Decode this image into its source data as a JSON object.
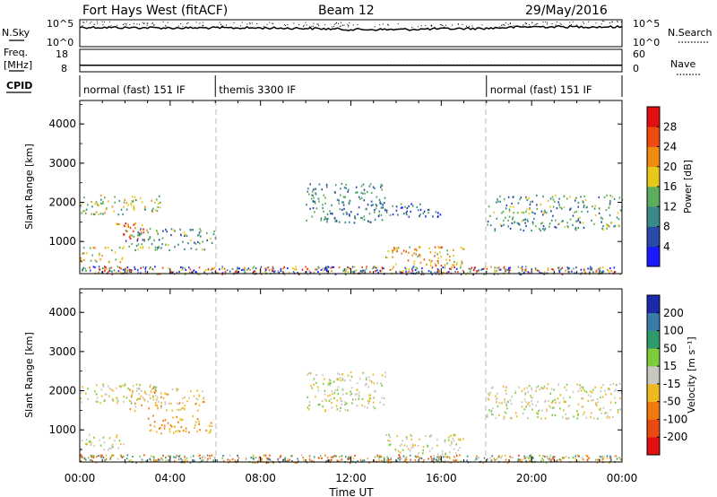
{
  "header": {
    "station": "Fort Hays West (fitACF)",
    "beam": "Beam 12",
    "date": "29/May/2016"
  },
  "noise_panel": {
    "left_label": "N.Sky",
    "right_label": "N.Search",
    "left_ticks": [
      "10^5",
      "10^0"
    ],
    "right_ticks": [
      "10^5",
      "10^0"
    ]
  },
  "freq_panel": {
    "left_label_1": "Freq.",
    "left_label_2": "[MHz]",
    "right_label": "Nave",
    "left_ticks": [
      "18",
      "8"
    ],
    "right_ticks": [
      "60",
      "0"
    ]
  },
  "cpid": {
    "label": "CPID",
    "segments": [
      {
        "start": 0,
        "end": 6,
        "name": "normal (fast) 151 IF"
      },
      {
        "start": 6,
        "end": 18,
        "name": "themis 3300 IF"
      },
      {
        "start": 18,
        "end": 24,
        "name": "normal (fast) 151 IF"
      }
    ]
  },
  "power_panel": {
    "ylabel": "Slant Range [km]",
    "yticks": [
      "4000",
      "3000",
      "2000",
      "1000"
    ],
    "colorbar_label": "Power [dB]",
    "colorbar_ticks": [
      "28",
      "24",
      "20",
      "16",
      "12",
      "8",
      "4"
    ],
    "colors": [
      "#1a1aff",
      "#2a4aa8",
      "#3a8a8a",
      "#5cae5c",
      "#e8c81a",
      "#f08a10",
      "#ef4a10",
      "#e01010"
    ]
  },
  "velocity_panel": {
    "ylabel": "Slant Range [km]",
    "yticks": [
      "4000",
      "3000",
      "2000",
      "1000"
    ],
    "colorbar_label": "Velocity [m s⁻¹]",
    "colorbar_ticks": [
      "200",
      "100",
      "50",
      "15",
      "-15",
      "-50",
      "-100",
      "-200"
    ],
    "colors": [
      "#1a2aa8",
      "#3a7aa8",
      "#2e9c6a",
      "#7ccc3c",
      "#c8c8c0",
      "#f0b820",
      "#f07a10",
      "#e84a10",
      "#e01010"
    ]
  },
  "xaxis": {
    "ticks": [
      "00:00",
      "04:00",
      "08:00",
      "12:00",
      "16:00",
      "20:00",
      "00:00"
    ],
    "label": "Time UT"
  },
  "chart_data": [
    {
      "type": "line",
      "title": "Fort Hays West (fitACF)",
      "subtitle": "Beam 12",
      "ylabel": "N.Sky",
      "x_range": [
        "00:00",
        "00:00"
      ],
      "ylim": [
        1,
        100000
      ],
      "y_scale": "log",
      "series": [
        {
          "name": "N.Sky",
          "x_hours": [
            0,
            2,
            4,
            6,
            8,
            10,
            12,
            14,
            16,
            18,
            20,
            22,
            24
          ],
          "values": [
            4000,
            3500,
            3000,
            3000,
            3000,
            2500,
            1500,
            1500,
            2000,
            2500,
            5000,
            5000,
            4500
          ]
        }
      ]
    },
    {
      "type": "line",
      "ylabel": "Freq. [MHz]",
      "y2label": "Nave",
      "ylim": [
        8,
        18
      ],
      "y2lim": [
        0,
        60
      ],
      "series": [
        {
          "name": "Freq.",
          "x_hours": [
            0,
            24
          ],
          "values": [
            10.9,
            10.9
          ]
        },
        {
          "name": "Nave",
          "x_hours": [
            0,
            3,
            6,
            14,
            18,
            24
          ],
          "values": [
            18,
            17,
            17,
            18,
            18,
            18
          ]
        }
      ]
    },
    {
      "type": "heatmap",
      "xlabel": "Time UT",
      "ylabel": "Slant Range [km]",
      "x_range_hours": [
        0,
        24
      ],
      "ylim": [
        180,
        4600
      ],
      "zlabel": "Power [dB]",
      "zlim": [
        0,
        30
      ],
      "grid": false,
      "echo_regions": [
        {
          "t0": 0.0,
          "t1": 3.6,
          "r0": 1700,
          "r1": 2200,
          "power": 16
        },
        {
          "t0": 1.6,
          "t1": 3.0,
          "r0": 1050,
          "r1": 1500,
          "power": 24
        },
        {
          "t0": 0.0,
          "t1": 2.0,
          "r0": 500,
          "r1": 900,
          "power": 18
        },
        {
          "t0": 2.0,
          "t1": 6.0,
          "r0": 800,
          "r1": 1350,
          "power": 12
        },
        {
          "t0": 10.0,
          "t1": 13.5,
          "r0": 1500,
          "r1": 2500,
          "power": 10
        },
        {
          "t0": 13.5,
          "t1": 17.0,
          "r0": 400,
          "r1": 900,
          "power": 20
        },
        {
          "t0": 13.0,
          "t1": 16.0,
          "r0": 1650,
          "r1": 2000,
          "power": 8
        },
        {
          "t0": 18.0,
          "t1": 24.0,
          "r0": 1300,
          "r1": 2200,
          "power": 12
        }
      ]
    },
    {
      "type": "heatmap",
      "xlabel": "Time UT",
      "ylabel": "Slant Range [km]",
      "x_range_hours": [
        0,
        24
      ],
      "ylim": [
        180,
        4600
      ],
      "zlabel": "Velocity [m s⁻¹]",
      "zlim": [
        -200,
        200
      ],
      "grid": false,
      "echo_regions": [
        {
          "t0": 0.0,
          "t1": 3.6,
          "r0": 1700,
          "r1": 2200,
          "velocity": 0
        },
        {
          "t0": 2.0,
          "t1": 5.5,
          "r0": 1500,
          "r1": 2100,
          "velocity": -30
        },
        {
          "t0": 3.0,
          "t1": 6.0,
          "r0": 900,
          "r1": 1400,
          "velocity": -50
        },
        {
          "t0": 0.0,
          "t1": 2.0,
          "r0": 500,
          "r1": 900,
          "velocity": 0
        },
        {
          "t0": 10.0,
          "t1": 13.5,
          "r0": 1500,
          "r1": 2500,
          "velocity": 0
        },
        {
          "t0": 13.5,
          "t1": 17.0,
          "r0": 400,
          "r1": 900,
          "velocity": 0
        },
        {
          "t0": 18.0,
          "t1": 24.0,
          "r0": 1300,
          "r1": 2200,
          "velocity": 0
        }
      ]
    }
  ]
}
